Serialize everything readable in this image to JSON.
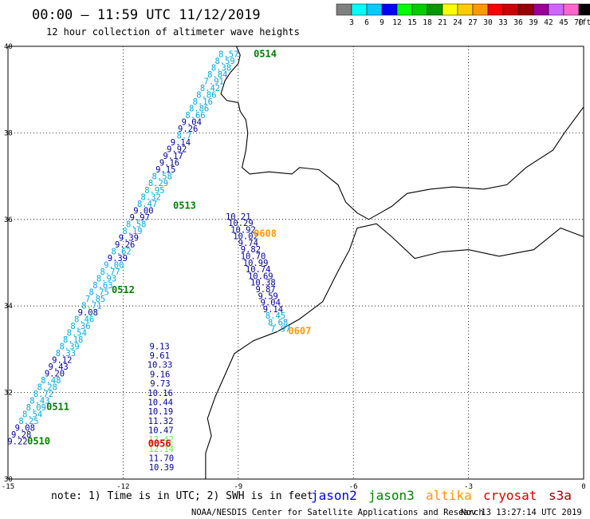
{
  "title": "00:00 – 11:59 UTC 11/12/2019",
  "subtitle": "12 hour collection of altimeter wave heights",
  "colorbar": {
    "unit": "(ft)",
    "colors": [
      "#808080",
      "#00ffff",
      "#00ccff",
      "#0000ff",
      "#00ff00",
      "#00cc00",
      "#009900",
      "#ffff00",
      "#ffcc00",
      "#ff9900",
      "#ff0000",
      "#cc0000",
      "#990000",
      "#990099",
      "#cc66ff",
      "#ff66cc",
      "#000000"
    ],
    "labels": [
      "3",
      "6",
      "9",
      "12",
      "15",
      "18",
      "21",
      "24",
      "27",
      "30",
      "33",
      "36",
      "39",
      "42",
      "45",
      "70"
    ]
  },
  "map": {
    "lon_range": [
      -15,
      0
    ],
    "lat_range": [
      30,
      40
    ],
    "x_ticks": [
      "-15",
      "-12",
      "-9",
      "-6",
      "-3",
      "0"
    ],
    "y_ticks": [
      "40",
      "38",
      "36",
      "34",
      "32",
      "30"
    ]
  },
  "passes": [
    {
      "label": "0514",
      "color": "#008000",
      "lon": -8.6,
      "lat": 39.75
    },
    {
      "label": "0513",
      "color": "#008000",
      "lon": -10.7,
      "lat": 36.25
    },
    {
      "label": "0608",
      "color": "#ff9900",
      "lon": -8.6,
      "lat": 35.6
    },
    {
      "label": "0512",
      "color": "#008000",
      "lon": -12.3,
      "lat": 34.3
    },
    {
      "label": "0607",
      "color": "#ff9900",
      "lon": -7.7,
      "lat": 33.35
    },
    {
      "label": "0511",
      "color": "#008000",
      "lon": -14.0,
      "lat": 31.6
    },
    {
      "label": "0510",
      "color": "#008000",
      "lon": -14.5,
      "lat": 30.8
    },
    {
      "label": "0056",
      "color": "#dd0000",
      "lon": -11.35,
      "lat": 30.75
    }
  ],
  "tracks": [
    {
      "lon0": -9.25,
      "lat0": 39.75,
      "lon1": -14.75,
      "lat1": 30.8,
      "values": [
        {
          "v": "8.57",
          "c": "#00aadd"
        },
        {
          "v": "8.59",
          "c": "#00aadd"
        },
        {
          "v": "8.38",
          "c": "#00aadd"
        },
        {
          "v": "8.84",
          "c": "#00aadd"
        },
        {
          "v": "7.91",
          "c": "#00aadd"
        },
        {
          "v": "8.42",
          "c": "#00aadd"
        },
        {
          "v": "8.86",
          "c": "#00aadd"
        },
        {
          "v": "8.16",
          "c": "#00aadd"
        },
        {
          "v": "8.86",
          "c": "#00aadd"
        },
        {
          "v": "8.66",
          "c": "#00aadd"
        },
        {
          "v": "9.04",
          "c": "#000099"
        },
        {
          "v": "9.26",
          "c": "#000099"
        },
        {
          "v": "8.7",
          "c": "#00aadd"
        },
        {
          "v": "9.14",
          "c": "#000099"
        },
        {
          "v": "9.92",
          "c": "#000099"
        },
        {
          "v": "9.17",
          "c": "#000099"
        },
        {
          "v": "9.16",
          "c": "#000099"
        },
        {
          "v": "9.15",
          "c": "#000099"
        },
        {
          "v": "8.58",
          "c": "#00aadd"
        },
        {
          "v": "8.29",
          "c": "#00aadd"
        },
        {
          "v": "8.95",
          "c": "#00aadd"
        },
        {
          "v": "8.32",
          "c": "#00aadd"
        },
        {
          "v": "8.47",
          "c": "#00aadd"
        },
        {
          "v": "9.00",
          "c": "#000099"
        },
        {
          "v": "9.97",
          "c": "#000099"
        },
        {
          "v": "8.58",
          "c": "#00aadd"
        },
        {
          "v": "8.19",
          "c": "#00aadd"
        },
        {
          "v": "9.39",
          "c": "#000099"
        },
        {
          "v": "9.26",
          "c": "#000099"
        },
        {
          "v": "8.62",
          "c": "#00aadd"
        },
        {
          "v": "9.39",
          "c": "#000099"
        },
        {
          "v": "9.00",
          "c": "#00aadd"
        },
        {
          "v": "8.77",
          "c": "#00aadd"
        },
        {
          "v": "8.93",
          "c": "#00aadd"
        },
        {
          "v": "8.63",
          "c": "#00aadd"
        },
        {
          "v": "8.75",
          "c": "#00aadd"
        },
        {
          "v": "7.85",
          "c": "#00aadd"
        },
        {
          "v": "8.71",
          "c": "#00aadd"
        },
        {
          "v": "9.08",
          "c": "#000099"
        },
        {
          "v": "8.46",
          "c": "#00aadd"
        },
        {
          "v": "8.36",
          "c": "#00aadd"
        },
        {
          "v": "8.54",
          "c": "#00aadd"
        },
        {
          "v": "8.18",
          "c": "#00aadd"
        },
        {
          "v": "8.39",
          "c": "#00aadd"
        },
        {
          "v": "8.33",
          "c": "#00aadd"
        },
        {
          "v": "9.12",
          "c": "#000099"
        },
        {
          "v": "9.43",
          "c": "#000099"
        },
        {
          "v": "9.20",
          "c": "#000099"
        },
        {
          "v": "8.48",
          "c": "#00aadd"
        },
        {
          "v": "8.28",
          "c": "#00aadd"
        },
        {
          "v": "8.72",
          "c": "#00aadd"
        },
        {
          "v": "8.43",
          "c": "#00aadd"
        },
        {
          "v": "8.09",
          "c": "#00aadd"
        },
        {
          "v": "8.54",
          "c": "#00aadd"
        },
        {
          "v": "8.25",
          "c": "#00aadd"
        },
        {
          "v": "9.08",
          "c": "#000099"
        },
        {
          "v": "9.28",
          "c": "#000099"
        },
        {
          "v": "9.22",
          "c": "#000099"
        }
      ]
    },
    {
      "lon0": -9.0,
      "lat0": 36.0,
      "lon1": -7.9,
      "lat1": 33.4,
      "values": [
        {
          "v": "10.21",
          "c": "#000099"
        },
        {
          "v": "10.29",
          "c": "#000099"
        },
        {
          "v": "10.92",
          "c": "#000099"
        },
        {
          "v": "10.02",
          "c": "#000099"
        },
        {
          "v": "9.74",
          "c": "#000099"
        },
        {
          "v": "9.82",
          "c": "#000099"
        },
        {
          "v": "10.70",
          "c": "#000099"
        },
        {
          "v": "10.99",
          "c": "#000099"
        },
        {
          "v": "10.74",
          "c": "#000099"
        },
        {
          "v": "10.69",
          "c": "#000099"
        },
        {
          "v": "10.38",
          "c": "#000099"
        },
        {
          "v": "9.87",
          "c": "#000099"
        },
        {
          "v": "9.59",
          "c": "#000099"
        },
        {
          "v": "9.04",
          "c": "#000099"
        },
        {
          "v": "9.14",
          "c": "#000099"
        },
        {
          "v": "8.45",
          "c": "#00aadd"
        },
        {
          "v": "8.68",
          "c": "#00aadd"
        },
        {
          "v": "7.97",
          "c": "#00aadd"
        }
      ]
    },
    {
      "lon0": -11.05,
      "lat0": 33.0,
      "lon1": -11.0,
      "lat1": 30.2,
      "values": [
        {
          "v": "9.13",
          "c": "#000099"
        },
        {
          "v": "9.61",
          "c": "#000099"
        },
        {
          "v": "10.33",
          "c": "#000099"
        },
        {
          "v": "9.16",
          "c": "#000099"
        },
        {
          "v": "9.73",
          "c": "#000099"
        },
        {
          "v": "10.16",
          "c": "#000099"
        },
        {
          "v": "10.44",
          "c": "#000099"
        },
        {
          "v": "10.19",
          "c": "#000099"
        },
        {
          "v": "11.32",
          "c": "#000099"
        },
        {
          "v": "10.47",
          "c": "#000099"
        },
        {
          "v": "12.42",
          "c": "#66ee44"
        },
        {
          "v": "12.14",
          "c": "#66ee44"
        },
        {
          "v": "11.70",
          "c": "#000099"
        },
        {
          "v": "10.39",
          "c": "#000099"
        }
      ]
    }
  ],
  "coast": [
    [
      -9.05,
      40.0
    ],
    [
      -8.95,
      39.8
    ],
    [
      -9.0,
      39.6
    ],
    [
      -9.2,
      39.4
    ],
    [
      -9.35,
      39.2
    ],
    [
      -9.45,
      38.9
    ],
    [
      -9.3,
      38.75
    ],
    [
      -9.0,
      38.7
    ],
    [
      -8.95,
      38.5
    ],
    [
      -8.8,
      38.3
    ],
    [
      -8.75,
      38.0
    ],
    [
      -8.8,
      37.6
    ],
    [
      -8.9,
      37.2
    ],
    [
      -8.7,
      37.05
    ],
    [
      -8.2,
      37.1
    ],
    [
      -7.6,
      37.05
    ],
    [
      -7.4,
      37.2
    ],
    [
      -6.9,
      37.15
    ],
    [
      -6.4,
      36.8
    ],
    [
      -6.2,
      36.4
    ],
    [
      -5.9,
      36.15
    ],
    [
      -5.6,
      36.0
    ],
    [
      -5.3,
      36.15
    ],
    [
      -5.0,
      36.3
    ],
    [
      -4.6,
      36.6
    ],
    [
      -4.0,
      36.7
    ],
    [
      -3.4,
      36.75
    ],
    [
      -2.6,
      36.7
    ],
    [
      -2.0,
      36.8
    ],
    [
      -1.5,
      37.2
    ],
    [
      -0.8,
      37.6
    ],
    [
      -0.5,
      38.0
    ],
    [
      0.0,
      38.6
    ]
  ],
  "africa": [
    [
      0.0,
      35.6
    ],
    [
      -0.6,
      35.8
    ],
    [
      -1.3,
      35.3
    ],
    [
      -2.2,
      35.15
    ],
    [
      -3.0,
      35.3
    ],
    [
      -3.7,
      35.25
    ],
    [
      -4.4,
      35.1
    ],
    [
      -5.0,
      35.6
    ],
    [
      -5.4,
      35.9
    ],
    [
      -5.9,
      35.8
    ],
    [
      -6.1,
      35.3
    ],
    [
      -6.4,
      34.8
    ],
    [
      -6.8,
      34.1
    ],
    [
      -7.4,
      33.7
    ],
    [
      -8.0,
      33.4
    ],
    [
      -8.6,
      33.2
    ],
    [
      -9.1,
      32.9
    ],
    [
      -9.3,
      32.5
    ],
    [
      -9.6,
      31.9
    ],
    [
      -9.8,
      31.4
    ],
    [
      -9.7,
      31.0
    ],
    [
      -9.85,
      30.6
    ],
    [
      -9.85,
      30.0
    ]
  ],
  "footer": {
    "note": "note: 1) Time is in UTC; 2) SWH is in feet",
    "legend": [
      {
        "name": "jason2",
        "color": "#0000ff"
      },
      {
        "name": "jason3",
        "color": "#008000"
      },
      {
        "name": "altika",
        "color": "#ff9900"
      },
      {
        "name": "cryosat",
        "color": "#dd0000"
      },
      {
        "name": "s3a",
        "color": "#990000"
      }
    ],
    "credit": "NOAA/NESDIS Center for Satellite Applications and Research",
    "timestamp": "Nov 13 13:27:14 UTC 2019"
  }
}
